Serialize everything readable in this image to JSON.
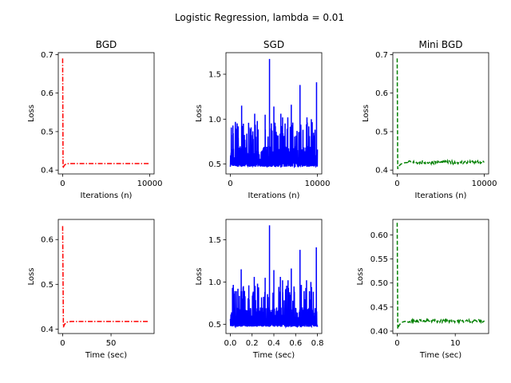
{
  "figure": {
    "title": "Logistic Regression, lambda = 0.01"
  },
  "chart_data": [
    {
      "type": "line",
      "title": "BGD",
      "xlabel": "Iterations (n)",
      "ylabel": "Loss",
      "xlim": [
        -500,
        10500
      ],
      "ylim": [
        0.39,
        0.705
      ],
      "xticks": [
        0,
        10000
      ],
      "xtick_labels": [
        "0",
        "10000"
      ],
      "yticks": [
        0.4,
        0.5,
        0.6,
        0.7
      ],
      "ytick_labels": [
        "0.4",
        "0.5",
        "0.6",
        "0.7"
      ],
      "series": [
        {
          "color": "#ff0000",
          "dash": "dashdot",
          "kind": "decay",
          "start": 0.69,
          "min_x": 50,
          "min_y": 0.405,
          "end": 0.417,
          "settle_x": 700,
          "x_end": 10000
        }
      ]
    },
    {
      "type": "line",
      "title": "SGD",
      "xlabel": "Iterations (n)",
      "ylabel": "Loss",
      "xlim": [
        -500,
        10500
      ],
      "ylim": [
        0.39,
        1.74
      ],
      "xticks": [
        0,
        10000
      ],
      "xtick_labels": [
        "0",
        "10000"
      ],
      "yticks": [
        0.5,
        1.0,
        1.5
      ],
      "ytick_labels": [
        "0.5",
        "1.0",
        "1.5"
      ],
      "series": [
        {
          "color": "#0000ff",
          "dash": "solid",
          "kind": "noisy",
          "x_end": 10000,
          "base": 0.47,
          "spread": 0.2,
          "spikes": [
            [
              300,
              0.93
            ],
            [
              900,
              0.92
            ],
            [
              1300,
              1.15
            ],
            [
              1500,
              0.95
            ],
            [
              2100,
              0.96
            ],
            [
              2800,
              1.06
            ],
            [
              3100,
              0.98
            ],
            [
              4000,
              1.05
            ],
            [
              4500,
              1.67
            ],
            [
              5000,
              1.14
            ],
            [
              5800,
              1.06
            ],
            [
              6000,
              1.02
            ],
            [
              6600,
              1.02
            ],
            [
              7000,
              1.16
            ],
            [
              8000,
              1.38
            ],
            [
              8800,
              1.02
            ],
            [
              9300,
              1.0
            ],
            [
              9900,
              1.41
            ]
          ]
        }
      ]
    },
    {
      "type": "line",
      "title": "Mini BGD",
      "xlabel": "Iterations (n)",
      "ylabel": "Loss",
      "xlim": [
        -500,
        10500
      ],
      "ylim": [
        0.39,
        0.705
      ],
      "xticks": [
        0,
        10000
      ],
      "xtick_labels": [
        "0",
        "10000"
      ],
      "yticks": [
        0.4,
        0.5,
        0.6,
        0.7
      ],
      "ytick_labels": [
        "0.4",
        "0.5",
        "0.6",
        "0.7"
      ],
      "series": [
        {
          "color": "#008000",
          "dash": "dashed",
          "kind": "minidecay",
          "start": 0.69,
          "min_x": 60,
          "min_y": 0.403,
          "end": 0.42,
          "settle_x": 1200,
          "x_end": 10000,
          "noise": 0.004
        }
      ]
    },
    {
      "type": "line",
      "title": "",
      "xlabel": "Time (sec)",
      "ylabel": "Loss",
      "xlim": [
        -4.5,
        94.5
      ],
      "ylim": [
        0.39,
        0.645
      ],
      "xticks": [
        0,
        50
      ],
      "xtick_labels": [
        "0",
        "50"
      ],
      "yticks": [
        0.4,
        0.5,
        0.6
      ],
      "ytick_labels": [
        "0.4",
        "0.5",
        "0.6"
      ],
      "series": [
        {
          "color": "#ff0000",
          "dash": "dashdot",
          "kind": "decay",
          "start": 0.63,
          "min_x": 0.8,
          "min_y": 0.404,
          "end": 0.417,
          "settle_x": 8,
          "x_end": 89
        }
      ]
    },
    {
      "type": "line",
      "title": "",
      "xlabel": "Time (sec)",
      "ylabel": "Loss",
      "xlim": [
        -0.04,
        0.84
      ],
      "ylim": [
        0.39,
        1.74
      ],
      "xticks": [
        0.0,
        0.2,
        0.4,
        0.6,
        0.8
      ],
      "xtick_labels": [
        "0.0",
        "0.2",
        "0.4",
        "0.6",
        "0.8"
      ],
      "yticks": [
        0.5,
        1.0,
        1.5
      ],
      "ytick_labels": [
        "0.5",
        "1.0",
        "1.5"
      ],
      "series": [
        {
          "color": "#0000ff",
          "dash": "solid",
          "kind": "noisy",
          "x_end": 0.8,
          "base": 0.47,
          "spread": 0.2,
          "spikes": [
            [
              0.02,
              0.93
            ],
            [
              0.07,
              0.92
            ],
            [
              0.1,
              1.15
            ],
            [
              0.12,
              0.95
            ],
            [
              0.17,
              0.96
            ],
            [
              0.22,
              1.06
            ],
            [
              0.25,
              0.98
            ],
            [
              0.32,
              1.05
            ],
            [
              0.36,
              1.67
            ],
            [
              0.4,
              1.14
            ],
            [
              0.46,
              1.06
            ],
            [
              0.48,
              1.02
            ],
            [
              0.53,
              1.02
            ],
            [
              0.56,
              1.16
            ],
            [
              0.64,
              1.38
            ],
            [
              0.7,
              1.02
            ],
            [
              0.74,
              1.0
            ],
            [
              0.79,
              1.41
            ]
          ]
        }
      ]
    },
    {
      "type": "line",
      "title": "",
      "xlabel": "Time (sec)",
      "ylabel": "Loss",
      "xlim": [
        -0.75,
        15.75
      ],
      "ylim": [
        0.395,
        0.632
      ],
      "xticks": [
        0,
        10
      ],
      "xtick_labels": [
        "0",
        "10"
      ],
      "yticks": [
        0.4,
        0.45,
        0.5,
        0.55,
        0.6
      ],
      "ytick_labels": [
        "0.40",
        "0.45",
        "0.50",
        "0.55",
        "0.60"
      ],
      "series": [
        {
          "color": "#008000",
          "dash": "dashed",
          "kind": "minidecay",
          "start": 0.625,
          "min_x": 0.1,
          "min_y": 0.405,
          "end": 0.421,
          "settle_x": 1.8,
          "x_end": 15,
          "noise": 0.003
        }
      ]
    }
  ]
}
